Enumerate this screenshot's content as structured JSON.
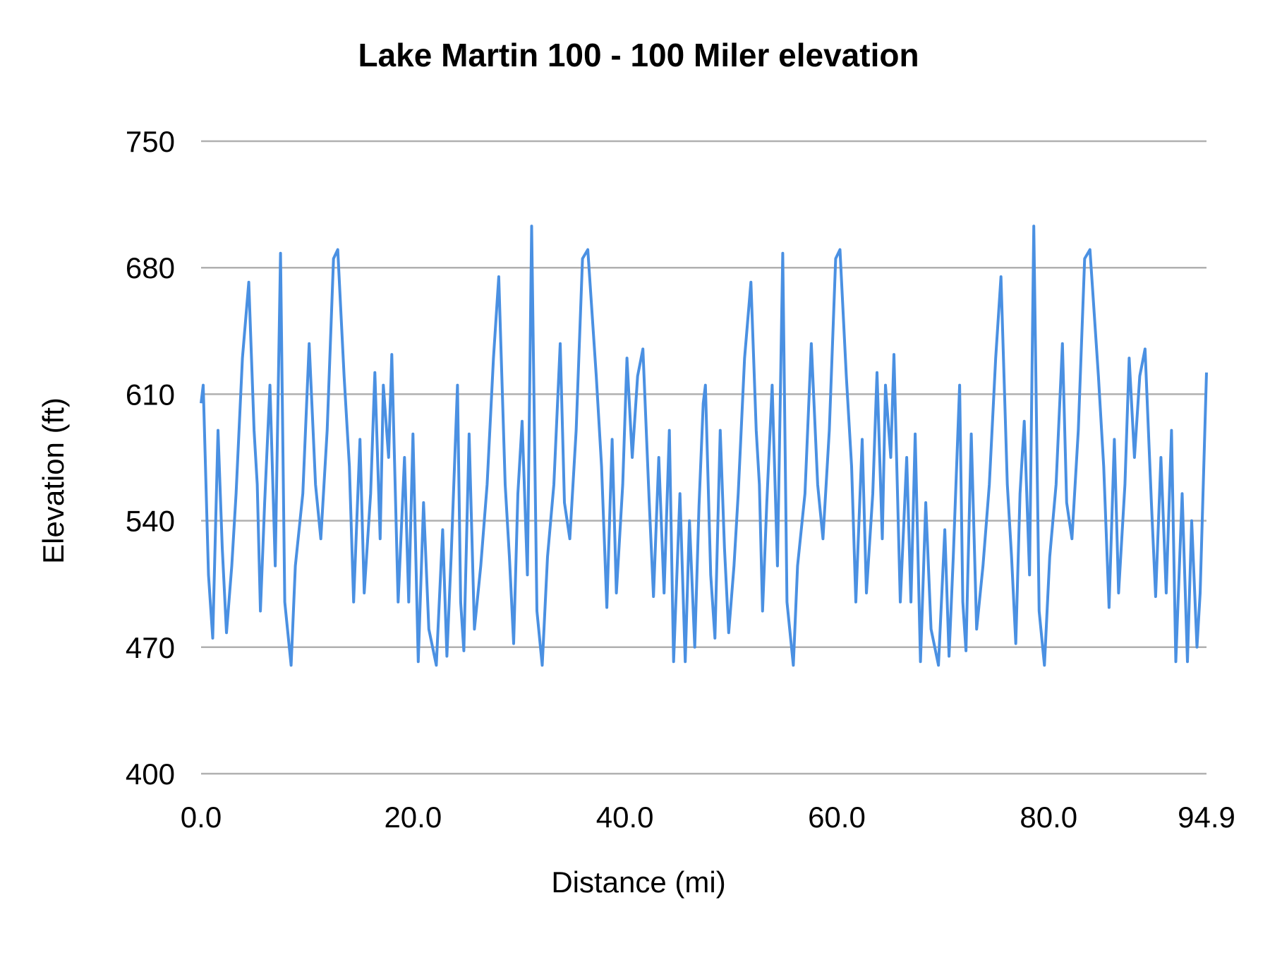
{
  "chart_data": {
    "type": "line",
    "title": "Lake Martin 100 - 100 Miler elevation",
    "xlabel": "Distance (mi)",
    "ylabel": "Elevation (ft)",
    "xlim": [
      0,
      94.9
    ],
    "ylim": [
      400,
      750
    ],
    "xticks": [
      "0.0",
      "20.0",
      "40.0",
      "60.0",
      "80.0",
      "94.9"
    ],
    "xtick_values": [
      0,
      20,
      40,
      60,
      80,
      94.9
    ],
    "yticks": [
      "400",
      "470",
      "540",
      "610",
      "680",
      "750"
    ],
    "ytick_values": [
      400,
      470,
      540,
      610,
      680,
      750
    ],
    "grid": "horizontal",
    "legend": "none",
    "line_color": "#4a90e2",
    "grid_color": "#b0b0b0",
    "x": [
      0,
      0.2,
      0.7,
      1.1,
      1.6,
      2.0,
      2.4,
      2.9,
      3.3,
      3.9,
      4.5,
      5.0,
      5.3,
      5.6,
      6.0,
      6.5,
      7.0,
      7.5,
      7.9,
      8.5,
      8.9,
      9.6,
      10.2,
      10.8,
      11.3,
      11.9,
      12.5,
      12.9,
      13.5,
      14.0,
      14.4,
      15.0,
      15.4,
      16.0,
      16.4,
      16.9,
      17.2,
      17.7,
      18.0,
      18.6,
      19.2,
      19.6,
      20.0,
      20.5,
      21.0,
      21.5,
      22.2,
      22.8,
      23.2,
      23.6,
      24.2,
      24.5,
      24.8,
      25.3,
      25.8,
      26.4,
      27.0,
      27.6,
      28.1,
      28.7,
      29.1,
      29.5,
      29.9,
      30.3,
      30.8,
      31.2,
      31.7,
      32.2,
      32.7,
      33.3,
      33.9,
      34.3,
      34.8,
      35.4,
      36.0,
      36.5,
      37.3,
      37.8,
      38.3,
      38.8,
      39.2,
      39.8,
      40.2,
      40.7,
      41.2,
      41.7,
      42.3,
      42.7,
      43.2,
      43.7,
      44.2,
      44.6,
      45.2,
      45.7,
      46.1,
      46.6,
      47.0,
      47.4,
      47.6,
      48.1,
      48.5,
      49.0,
      49.4,
      49.8,
      50.3,
      50.7,
      51.3,
      51.9,
      52.4,
      52.7,
      53.0,
      53.4,
      53.9,
      54.4,
      54.9,
      55.3,
      55.9,
      56.3,
      57.0,
      57.6,
      58.2,
      58.7,
      59.3,
      59.9,
      60.3,
      60.9,
      61.4,
      61.8,
      62.4,
      62.8,
      63.4,
      63.8,
      64.3,
      64.6,
      65.1,
      65.4,
      66.0,
      66.6,
      67.0,
      67.4,
      67.9,
      68.4,
      68.9,
      69.6,
      70.2,
      70.6,
      71.0,
      71.6,
      71.9,
      72.2,
      72.7,
      73.2,
      73.8,
      74.4,
      75.0,
      75.5,
      76.1,
      76.5,
      76.9,
      77.3,
      77.7,
      78.2,
      78.6,
      79.1,
      79.6,
      80.1,
      80.7,
      81.3,
      81.7,
      82.2,
      82.8,
      83.4,
      83.9,
      84.7,
      85.2,
      85.7,
      86.2,
      86.6,
      87.2,
      87.6,
      88.1,
      88.6,
      89.1,
      89.7,
      90.1,
      90.6,
      91.1,
      91.6,
      92.0,
      92.6,
      93.1,
      93.5,
      94.0,
      94.3,
      94.9
    ],
    "y": [
      605,
      615,
      510,
      475,
      590,
      525,
      478,
      515,
      555,
      630,
      672,
      590,
      560,
      490,
      550,
      615,
      515,
      688,
      495,
      460,
      515,
      555,
      638,
      560,
      530,
      590,
      685,
      690,
      620,
      570,
      495,
      585,
      500,
      555,
      622,
      530,
      615,
      575,
      632,
      495,
      575,
      495,
      588,
      462,
      550,
      480,
      460,
      535,
      465,
      520,
      615,
      495,
      468,
      588,
      480,
      515,
      560,
      630,
      675,
      560,
      520,
      472,
      555,
      595,
      510,
      703,
      490,
      460,
      520,
      560,
      638,
      550,
      530,
      590,
      685,
      690,
      620,
      570,
      492,
      585,
      500,
      560,
      630,
      575,
      620,
      635,
      550,
      498,
      575,
      500,
      590,
      462,
      555,
      462,
      540,
      470,
      548,
      605,
      615,
      510,
      475,
      590,
      525,
      478,
      515,
      555,
      630,
      672,
      590,
      560,
      490,
      550,
      615,
      515,
      688,
      495,
      460,
      515,
      555,
      638,
      560,
      530,
      590,
      685,
      690,
      620,
      570,
      495,
      585,
      500,
      555,
      622,
      530,
      615,
      575,
      632,
      495,
      575,
      495,
      588,
      462,
      550,
      480,
      460,
      535,
      465,
      520,
      615,
      495,
      468,
      588,
      480,
      515,
      560,
      630,
      675,
      560,
      520,
      472,
      555,
      595,
      510,
      703,
      490,
      460,
      520,
      560,
      638,
      550,
      530,
      590,
      685,
      690,
      620,
      570,
      492,
      585,
      500,
      560,
      630,
      575,
      620,
      635,
      550,
      498,
      575,
      500,
      590,
      462,
      555,
      462,
      540,
      470,
      500,
      622
    ]
  }
}
